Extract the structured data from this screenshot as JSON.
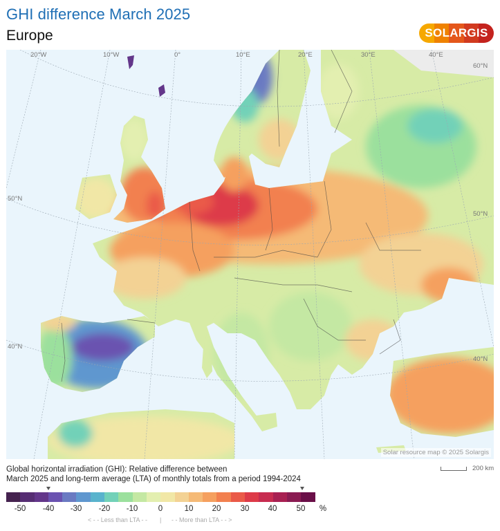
{
  "header": {
    "title": "GHI difference March 2025",
    "subtitle": "Europe",
    "logo_text": "SOLARGIS",
    "title_color": "#1f6fb5",
    "logo_colors": [
      "#f6a800",
      "#ef8200",
      "#e4571b",
      "#d13a1f",
      "#c4231e"
    ]
  },
  "map": {
    "graticule_labels": {
      "lon": [
        "20°W",
        "10°W",
        "0°",
        "10°E",
        "20°E",
        "30°E",
        "40°E"
      ],
      "lat_left": [
        "50°N",
        "40°N"
      ],
      "lat_right": [
        "60°N",
        "50°N",
        "40°N"
      ]
    },
    "credit": "Solar resource map © 2025 Solargis",
    "sea_color": "#eaf5fc",
    "nodata_color": "#ececec"
  },
  "scale_bar": {
    "label": "200 km"
  },
  "description": {
    "line1": "Global horizontal irradiation (GHI): Relative difference between",
    "line2": "March 2025 and long-term average (LTA) of monthly totals from a period 1994-2024"
  },
  "legend": {
    "unit": "%",
    "ticks": [
      "-50",
      "-40",
      "-30",
      "-20",
      "-10",
      "0",
      "10",
      "20",
      "30",
      "40",
      "50"
    ],
    "colors": [
      "#45224f",
      "#562d73",
      "#63368a",
      "#6a52b0",
      "#6a7ac2",
      "#5f97cf",
      "#59b3cd",
      "#72d1b8",
      "#9be09d",
      "#c4e8a3",
      "#e3efb0",
      "#f1e7a6",
      "#f3d294",
      "#f5ba76",
      "#f5a05f",
      "#f2804f",
      "#ea5a48",
      "#dd3a48",
      "#c72c50",
      "#a82052",
      "#8a1b52",
      "#6a0f48"
    ],
    "markers": [
      "-40",
      "50"
    ],
    "less_note": "< - -  Less than LTA  - -",
    "separator": "|",
    "more_note": "- -  More than LTA  - - >"
  },
  "chart_data": {
    "type": "heatmap",
    "title": "GHI difference March 2025",
    "subtitle": "Europe",
    "variable": "Global horizontal irradiation (GHI) relative difference vs LTA 1994-2024",
    "unit": "%",
    "scale_range": [
      -55,
      55
    ],
    "scale_step": 5,
    "tick_labels": [
      "-50",
      "-40",
      "-30",
      "-20",
      "-10",
      "0",
      "10",
      "20",
      "30",
      "40",
      "50"
    ],
    "regions": [
      {
        "name": "Netherlands / N Germany",
        "approx_value": 35
      },
      {
        "name": "England",
        "approx_value": 25
      },
      {
        "name": "Denmark",
        "approx_value": 20
      },
      {
        "name": "Poland",
        "approx_value": 20
      },
      {
        "name": "N France / Belgium",
        "approx_value": 20
      },
      {
        "name": "Turkey (Anatolia)",
        "approx_value": 20
      },
      {
        "name": "Ukraine / Crimea",
        "approx_value": 15
      },
      {
        "name": "Sweden south",
        "approx_value": 10
      },
      {
        "name": "Balkans",
        "approx_value": 0
      },
      {
        "name": "Italy",
        "approx_value": -5
      },
      {
        "name": "W Russia",
        "approx_value": -10
      },
      {
        "name": "Spain (central/east)",
        "approx_value": -35
      },
      {
        "name": "Norway mountains",
        "approx_value": -35
      },
      {
        "name": "Faroe / Shetland",
        "approx_value": -40
      }
    ]
  }
}
